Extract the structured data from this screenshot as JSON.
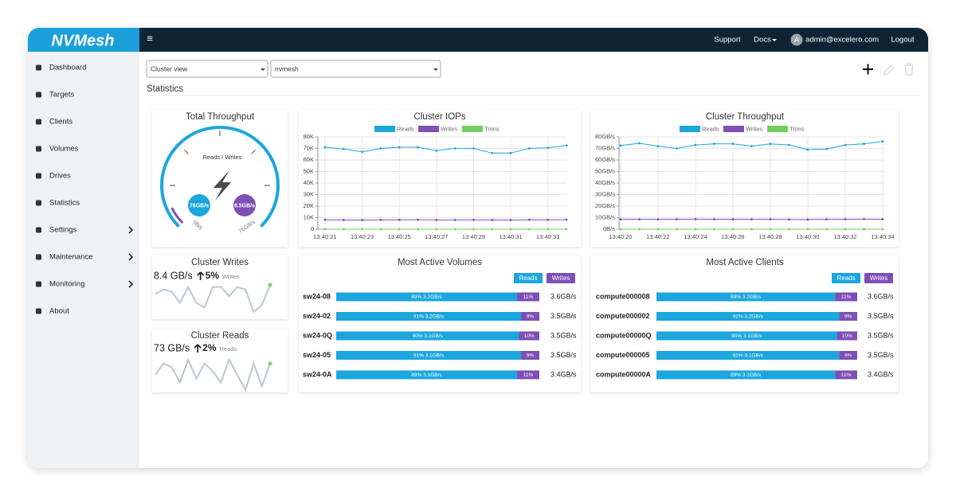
{
  "header": {
    "logo": "NVMesh",
    "menu_icon": "≡",
    "links": [
      "Support",
      "Docs"
    ],
    "avatar": "A",
    "user": "admin@excelero.com",
    "logout": "Logout"
  },
  "sidebar": {
    "items": [
      {
        "label": "Dashboard"
      },
      {
        "label": "Targets"
      },
      {
        "label": "Clients"
      },
      {
        "label": "Volumes"
      },
      {
        "label": "Drives"
      },
      {
        "label": "Statistics"
      },
      {
        "label": "Settings",
        "submenu": true
      },
      {
        "label": "Maintenance",
        "submenu": true
      },
      {
        "label": "Monitoring",
        "submenu": true
      },
      {
        "label": "About"
      }
    ]
  },
  "toolbar": {
    "view": "Cluster view",
    "cluster": "nvmesh",
    "title": "Statistics"
  },
  "gauge": {
    "title": "Total Throughput",
    "caption": "Reads / Writes",
    "reads": "76GB/s",
    "writes": "8.5GB/s",
    "min_label": "0B/s",
    "max_label": "76GB/s"
  },
  "chart_data": [
    {
      "type": "line",
      "title": "Cluster IOPs",
      "categories": [
        "13:40:21",
        null,
        "13:40:23",
        null,
        "13:40:25",
        null,
        "13:40:27",
        null,
        "13:40:29",
        null,
        "13:40:31",
        null,
        "13:40:33",
        null
      ],
      "series": [
        {
          "name": "Reads",
          "color": "#1ba6de",
          "values": [
            71000,
            69500,
            67000,
            70000,
            71000,
            71000,
            68000,
            70000,
            70000,
            66000,
            66000,
            70000,
            70500,
            72500
          ]
        },
        {
          "name": "Writes",
          "color": "#7e4fb4",
          "values": [
            8200,
            8000,
            7900,
            8100,
            8100,
            8200,
            8000,
            8000,
            8100,
            8000,
            7900,
            8200,
            8100,
            8300
          ]
        },
        {
          "name": "Trims",
          "color": "#6fcf5e",
          "values": [
            0,
            0,
            0,
            0,
            0,
            0,
            0,
            0,
            0,
            0,
            0,
            0,
            0,
            0
          ]
        }
      ],
      "ylim": [
        0,
        80000
      ],
      "yticks": [
        0,
        {
          "value": 10000,
          "label": "10K"
        },
        {
          "value": 20000,
          "label": "20K"
        },
        {
          "value": 30000,
          "label": "30K"
        },
        {
          "value": 40000,
          "label": "40K"
        },
        {
          "value": 50000,
          "label": "50K"
        },
        {
          "value": 60000,
          "label": "60K"
        },
        {
          "value": 70000,
          "label": "70K"
        },
        {
          "value": 80000,
          "label": "80K"
        }
      ],
      "grid": true
    },
    {
      "type": "line",
      "title": "Cluster Throughput",
      "categories": [
        "13:40:20",
        null,
        "13:40:22",
        null,
        "13:40:24",
        null,
        "13:40:26",
        null,
        "13:40:28",
        null,
        "13:40:30",
        null,
        "13:40:32",
        null,
        "13:40:34"
      ],
      "series": [
        {
          "name": "Reads",
          "color": "#1ba6de",
          "values": [
            72.5,
            74.5,
            72,
            70,
            73,
            74,
            74,
            72,
            74,
            73,
            69,
            69.5,
            73,
            74,
            76
          ]
        },
        {
          "name": "Writes",
          "color": "#7e4fb4",
          "values": [
            8.6,
            8.5,
            8.5,
            8.6,
            8.7,
            8.6,
            8.6,
            8.5,
            8.6,
            8.4,
            8.4,
            8.5,
            8.6,
            8.7,
            8.6
          ]
        },
        {
          "name": "Trims",
          "color": "#6fcf5e",
          "values": [
            0,
            0,
            0,
            0,
            0,
            0,
            0,
            0,
            0,
            0,
            0,
            0,
            0,
            0,
            0
          ]
        }
      ],
      "ylim": [
        0,
        80
      ],
      "yticks": [
        {
          "value": 0,
          "label": "0B/s"
        },
        {
          "value": 10,
          "label": "10GB/s"
        },
        {
          "value": 20,
          "label": "20GB/s"
        },
        {
          "value": 30,
          "label": "30GB/s"
        },
        {
          "value": 40,
          "label": "40GB/s"
        },
        {
          "value": 50,
          "label": "50GB/s"
        },
        {
          "value": 60,
          "label": "60GB/s"
        },
        {
          "value": 70,
          "label": "70GB/s"
        },
        {
          "value": 80,
          "label": "80GB/s"
        }
      ],
      "grid": true
    },
    {
      "type": "sparkline",
      "title": "Cluster Writes",
      "value": "8.4 GB/s",
      "change": "5%",
      "label": "Writes",
      "color": "#b9c7d3",
      "values": [
        7,
        8,
        7.5,
        5,
        8.5,
        5,
        4,
        8.5,
        8.6,
        6.5,
        8.5,
        8,
        3,
        4.5,
        9
      ]
    },
    {
      "type": "sparkline",
      "title": "Cluster Reads",
      "value": "73 GB/s",
      "change": "2%",
      "label": "Reads",
      "color": "#b9c7d3",
      "values": [
        5,
        8,
        7,
        3,
        9,
        4,
        8,
        6,
        3,
        9,
        5,
        1,
        8,
        2,
        8
      ]
    }
  ],
  "volumes": {
    "title": "Most Active Volumes",
    "legend": [
      "Reads",
      "Writes"
    ],
    "rows": [
      {
        "name": "sw24-08",
        "reads": 89,
        "reads_label": "89% 3.2GB/s",
        "writes": 11,
        "writes_label": "11%",
        "total": "3.6GB/s"
      },
      {
        "name": "sw24-02",
        "reads": 91,
        "reads_label": "91% 3.2GB/s",
        "writes": 9,
        "writes_label": "9%",
        "total": "3.5GB/s"
      },
      {
        "name": "sw24-0Q",
        "reads": 90,
        "reads_label": "90% 3.1GB/s",
        "writes": 10,
        "writes_label": "10%",
        "total": "3.5GB/s"
      },
      {
        "name": "sw24-05",
        "reads": 91,
        "reads_label": "91% 3.1GB/s",
        "writes": 9,
        "writes_label": "9%",
        "total": "3.5GB/s"
      },
      {
        "name": "sw24-0A",
        "reads": 89,
        "reads_label": "89% 3.1GB/s",
        "writes": 11,
        "writes_label": "11%",
        "total": "3.4GB/s"
      }
    ]
  },
  "clients": {
    "title": "Most Active Clients",
    "legend": [
      "Reads",
      "Writes"
    ],
    "rows": [
      {
        "name": "compute000008",
        "reads": 89,
        "reads_label": "89% 3.2GB/s",
        "writes": 11,
        "writes_label": "11%",
        "total": "3.6GB/s"
      },
      {
        "name": "compute000002",
        "reads": 91,
        "reads_label": "91% 3.2GB/s",
        "writes": 9,
        "writes_label": "9%",
        "total": "3.5GB/s"
      },
      {
        "name": "compute00000Q",
        "reads": 90,
        "reads_label": "90% 3.1GB/s",
        "writes": 10,
        "writes_label": "10%",
        "total": "3.5GB/s"
      },
      {
        "name": "compute000005",
        "reads": 91,
        "reads_label": "91% 3.1GB/s",
        "writes": 9,
        "writes_label": "9%",
        "total": "3.5GB/s"
      },
      {
        "name": "compute00000A",
        "reads": 89,
        "reads_label": "89% 3.1GB/s",
        "writes": 11,
        "writes_label": "11%",
        "total": "3.4GB/s"
      }
    ]
  }
}
